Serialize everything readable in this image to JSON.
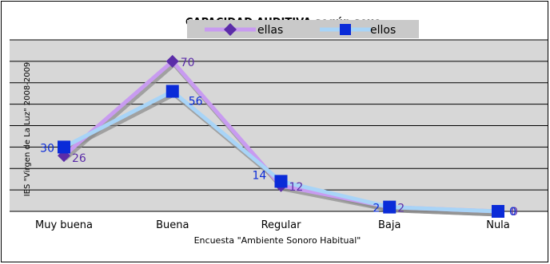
{
  "chart_data": {
    "type": "line",
    "title": "CAPACIDAD AUDITIVA según sexo",
    "xlabel": "Encuesta \"Ambiente Sonoro Habitual\"",
    "ylabel": "IES \"Virgen de La Luz\" 2008-2009",
    "categories": [
      "Muy buena",
      "Buena",
      "Regular",
      "Baja",
      "Nula"
    ],
    "ylim": [
      0,
      80
    ],
    "grid": true,
    "legend": "top",
    "series": [
      {
        "name": "ellas",
        "values": [
          26,
          70,
          12,
          2,
          0
        ],
        "color": "#5b2ca8",
        "line_color": "#c89bf0",
        "marker": "diamond",
        "label_color": "#5b2ca8"
      },
      {
        "name": "ellos",
        "values": [
          30,
          56,
          14,
          2,
          0
        ],
        "color": "#0a2bd8",
        "line_color": "#a8d4f7",
        "marker": "square",
        "label_color": "#0a2bd8"
      }
    ]
  }
}
